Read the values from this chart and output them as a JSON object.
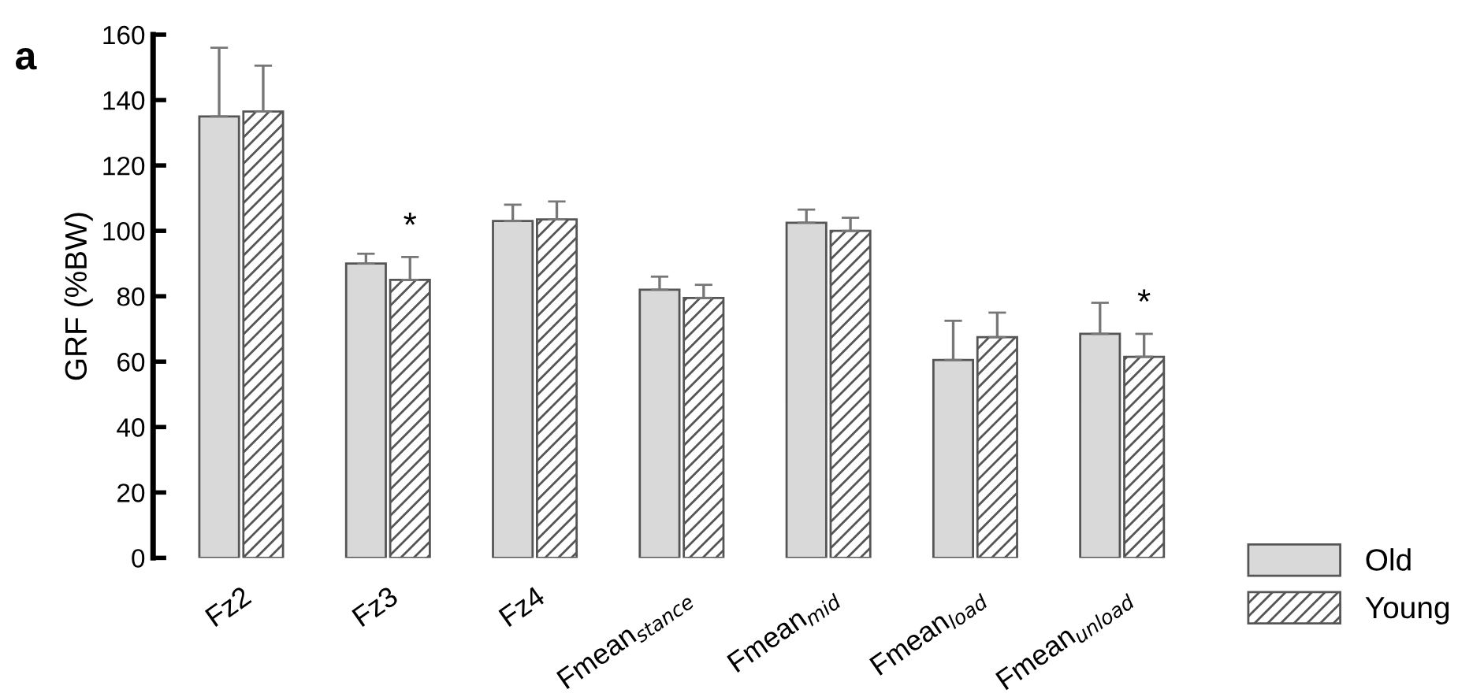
{
  "chart_data": {
    "type": "bar",
    "ylabel": "GRF (%BW)",
    "categories": [
      "Fz2",
      "Fz3",
      "Fz4",
      "Fmean$_{stance}$",
      "Fmean$_{mid}$",
      "Fmean$_{load}$",
      "Fmean$_{unload}$"
    ],
    "series": [
      {
        "name": "Old",
        "color": "#d9d9d9",
        "values": [
          135,
          90,
          103,
          82,
          102.5,
          60.5,
          68.5
        ],
        "errors": [
          21,
          3,
          5,
          4,
          4,
          12,
          9.5
        ]
      },
      {
        "name": "Young",
        "color": "#555555",
        "values": [
          136.5,
          85,
          103.5,
          79.5,
          100,
          67.5,
          61.5
        ],
        "errors": [
          14,
          7,
          5.5,
          4,
          4,
          7.5,
          7
        ]
      }
    ],
    "ylim": [
      0,
      160
    ],
    "yticks": [
      0,
      20,
      40,
      60,
      80,
      100,
      120,
      140,
      160
    ],
    "annotations": [
      "a",
      {
        "text": "*",
        "x": "Fz3",
        "y": 85
      },
      {
        "text": "*",
        "x": "Fmean$_{unload}$",
        "y": 61.5
      }
    ],
    "legend": "bottom right",
    "grid": false
  }
}
